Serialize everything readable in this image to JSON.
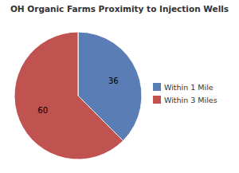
{
  "chart_data": {
    "type": "pie",
    "title": "OH Organic Farms Proximity to Injection Wells",
    "categories": [
      "Within 1 Mile",
      "Within 3 Miles"
    ],
    "values": [
      36,
      60
    ],
    "colors": [
      "#5b7db5",
      "#c0524f"
    ],
    "data_labels": true,
    "legend": "right"
  }
}
